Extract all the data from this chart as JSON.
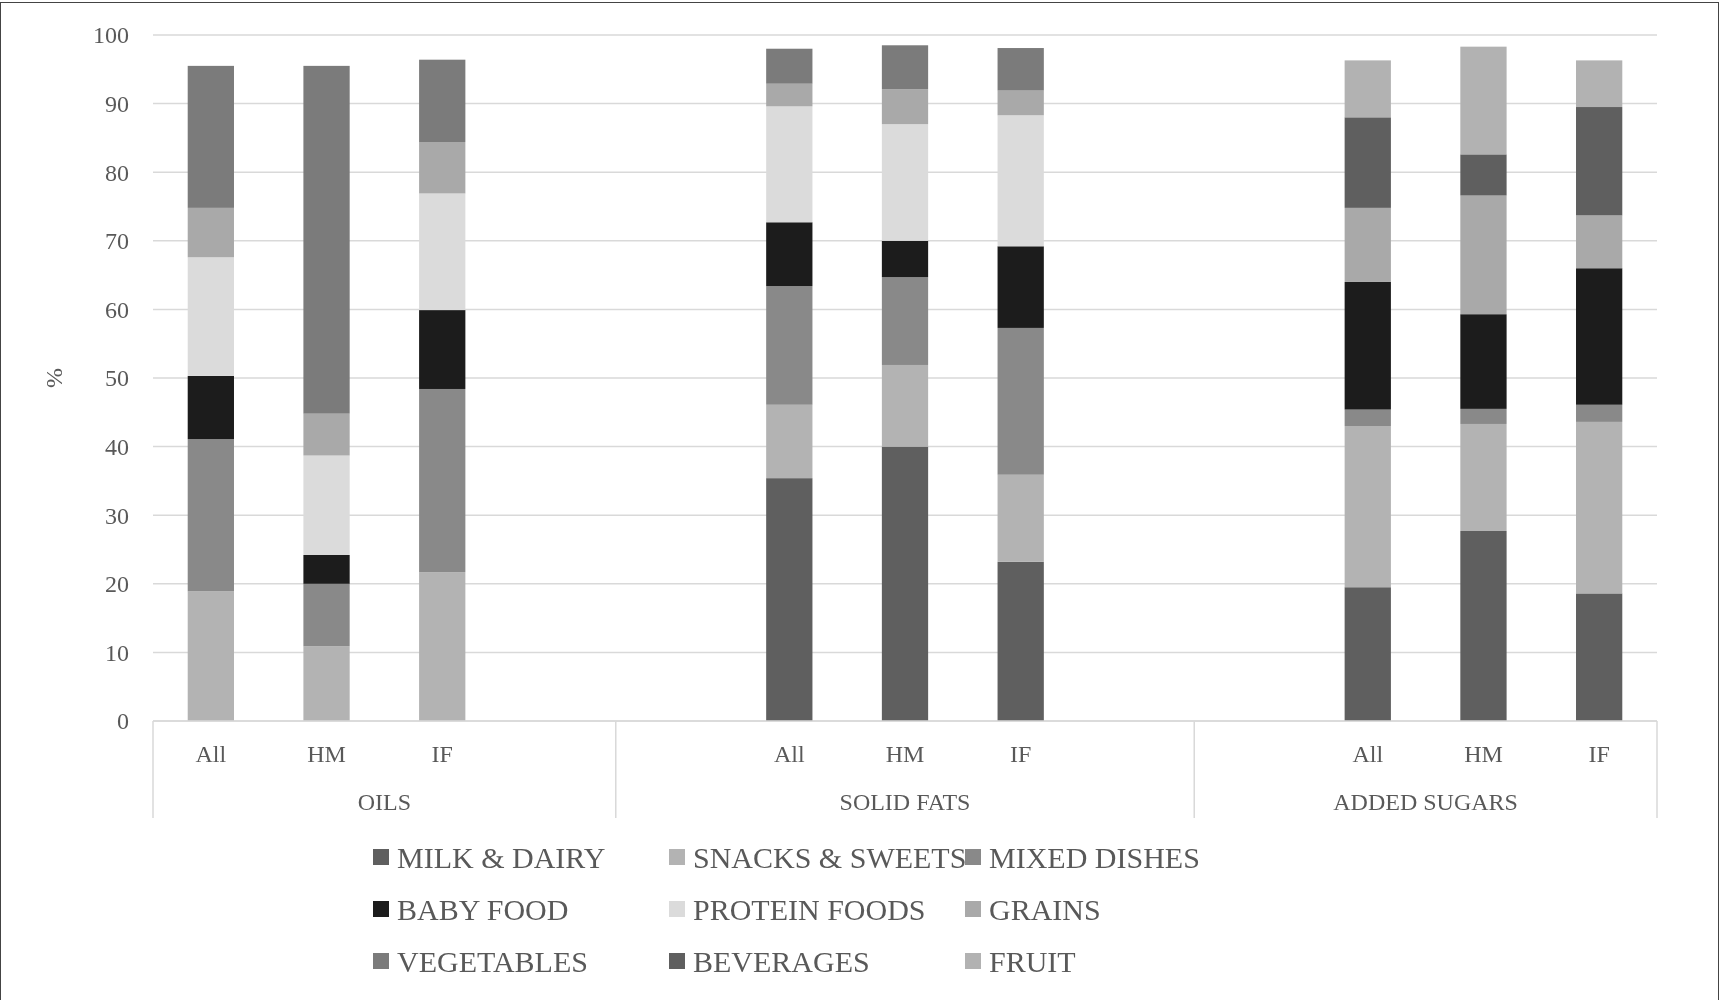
{
  "chart_data": {
    "type": "bar",
    "stacked": true,
    "ylabel": "%",
    "categories": [
      "All",
      "HM",
      "IF",
      null,
      null,
      "All",
      "HM",
      "IF",
      null,
      null,
      "All",
      "HM",
      "IF"
    ],
    "annotations": [
      "OILS",
      "SOLID FATS",
      "ADDED SUGARS"
    ],
    "ylim": [
      0,
      100
    ],
    "yticks": [
      0,
      10,
      20,
      30,
      40,
      50,
      60,
      70,
      80,
      90,
      100
    ],
    "grid": "y",
    "legend": "bottom",
    "series": [
      {
        "name": "MILK & DAIRY",
        "color": "#5f5f5f",
        "values": [
          0,
          0,
          0,
          null,
          null,
          35.4,
          40.0,
          23.2,
          null,
          null,
          19.5,
          27.7,
          18.6
        ]
      },
      {
        "name": "SNACKS & SWEETS",
        "color": "#b3b3b3",
        "values": [
          18.9,
          10.9,
          21.7,
          null,
          null,
          10.7,
          11.9,
          12.7,
          null,
          null,
          23.5,
          15.6,
          25.0
        ]
      },
      {
        "name": "MIXED DISHES",
        "color": "#898989",
        "values": [
          22.2,
          9.1,
          26.7,
          null,
          null,
          17.3,
          12.8,
          21.4,
          null,
          null,
          2.4,
          2.2,
          2.5
        ]
      },
      {
        "name": "BABY FOOD",
        "color": "#1c1c1c",
        "values": [
          9.2,
          4.2,
          11.5,
          null,
          null,
          9.3,
          5.3,
          11.9,
          null,
          null,
          18.6,
          13.8,
          19.9
        ]
      },
      {
        "name": "PROTEIN FOODS",
        "color": "#dbdbdb",
        "values": [
          17.3,
          14.5,
          17.0,
          null,
          null,
          16.9,
          17.0,
          19.1,
          null,
          null,
          0,
          0,
          0
        ]
      },
      {
        "name": "GRAINS",
        "color": "#a9a9a9",
        "values": [
          7.2,
          6.1,
          7.5,
          null,
          null,
          3.3,
          5.1,
          3.6,
          null,
          null,
          10.8,
          17.3,
          7.7
        ]
      },
      {
        "name": "VEGETABLES",
        "color": "#7b7b7b",
        "values": [
          20.7,
          50.7,
          12.0,
          null,
          null,
          5.1,
          6.4,
          6.2,
          null,
          null,
          0,
          0,
          0
        ]
      },
      {
        "name": "BEVERAGES",
        "color": "#5f5f5f",
        "values": [
          0,
          0,
          0,
          null,
          null,
          0,
          0,
          0,
          null,
          null,
          13.2,
          6.0,
          15.8
        ]
      },
      {
        "name": "FRUIT",
        "color": "#b2b2b2",
        "values": [
          0,
          0,
          0,
          null,
          null,
          0,
          0,
          0,
          null,
          null,
          8.3,
          15.7,
          6.8
        ]
      }
    ]
  }
}
